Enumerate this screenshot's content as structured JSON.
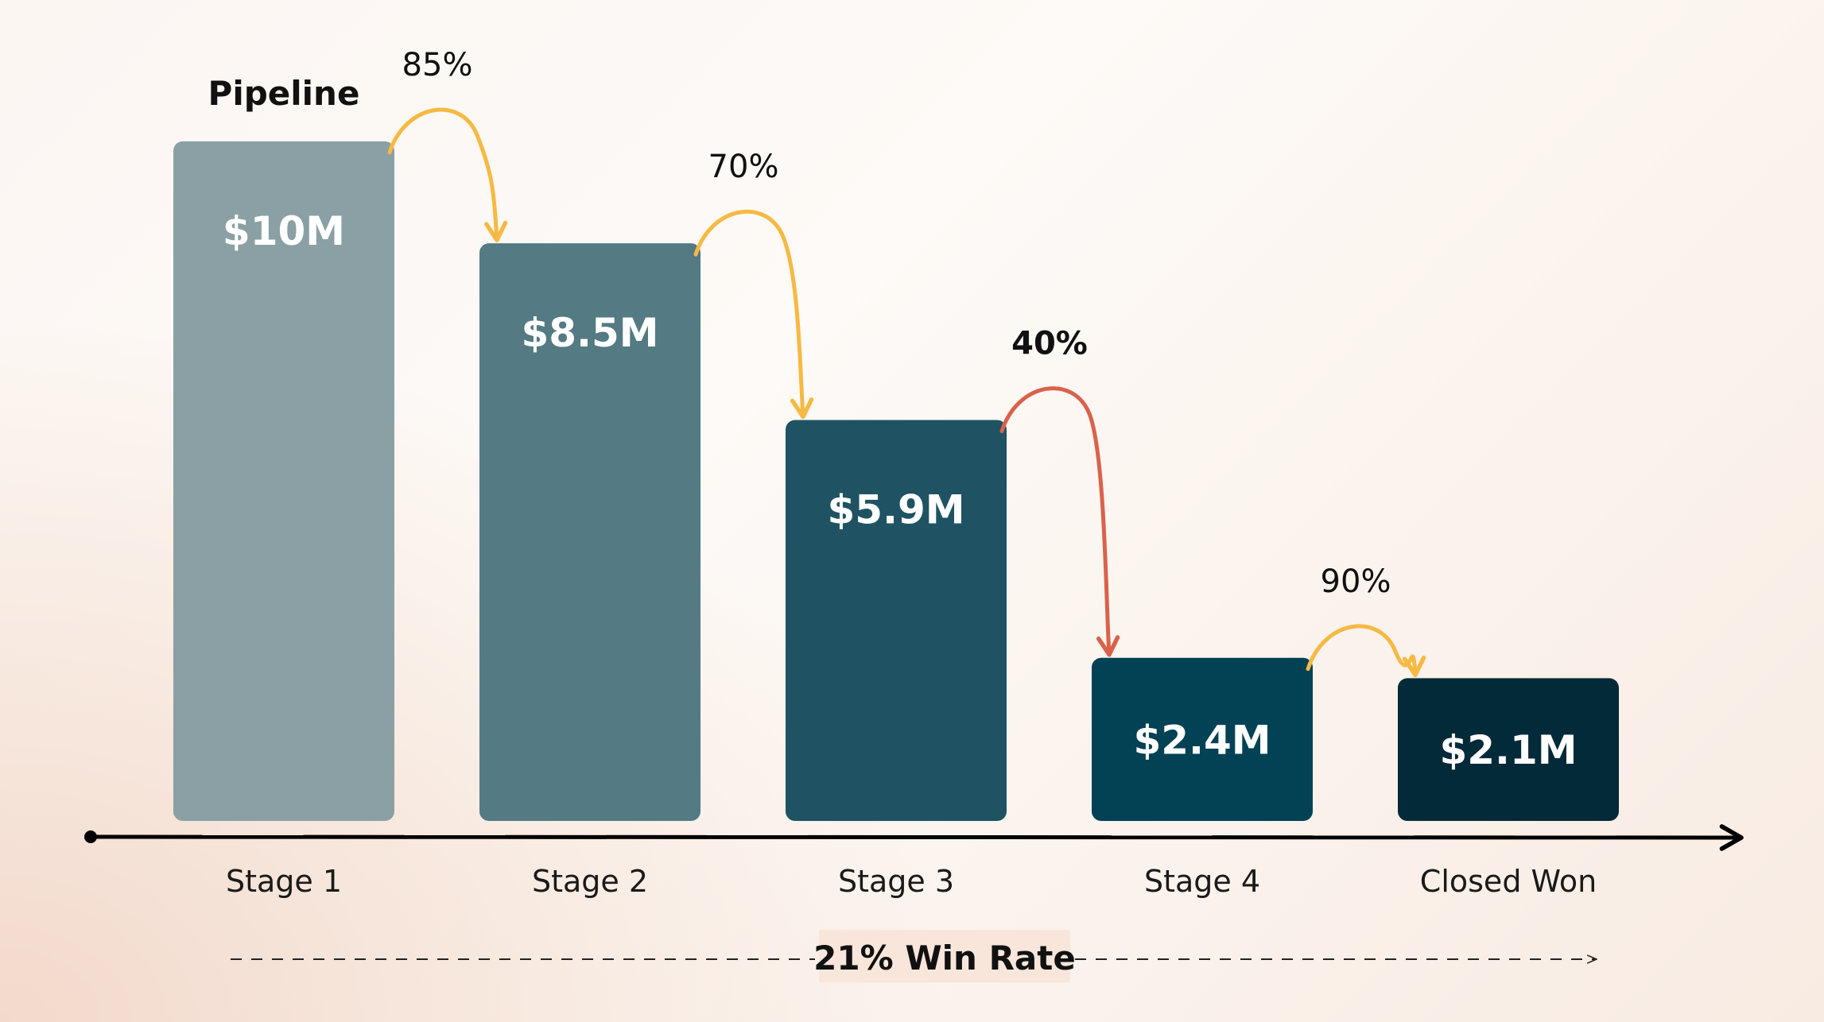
{
  "chart_data": {
    "type": "bar",
    "title": "Pipeline",
    "categories": [
      "Stage 1",
      "Stage 2",
      "Stage 3",
      "Stage 4",
      "Closed Won"
    ],
    "values": [
      10,
      8.5,
      5.9,
      2.4,
      2.1
    ],
    "value_unit": "$M",
    "data_labels": [
      "$10M",
      "$8.5M",
      "$5.9M",
      "$2.4M",
      "$2.1M"
    ],
    "ylim": [
      0,
      10.7
    ],
    "grid": false,
    "legend": "none",
    "conversion_rates": [
      {
        "from": "Stage 1",
        "to": "Stage 2",
        "label": "85%",
        "emphasis": false
      },
      {
        "from": "Stage 2",
        "to": "Stage 3",
        "label": "70%",
        "emphasis": false
      },
      {
        "from": "Stage 3",
        "to": "Stage 4",
        "label": "40%",
        "emphasis": true
      },
      {
        "from": "Stage 4",
        "to": "Closed Won",
        "label": "90%",
        "emphasis": false
      }
    ],
    "win_rate_label": "21% Win Rate"
  },
  "colors": {
    "bars": [
      "#8aa0a4",
      "#547a84",
      "#1f5363",
      "#034155",
      "#032a38"
    ],
    "arrow_normal": "#f6b943",
    "arrow_emphasis": "#d9624a",
    "axis": "#000000",
    "text": "#111111"
  }
}
